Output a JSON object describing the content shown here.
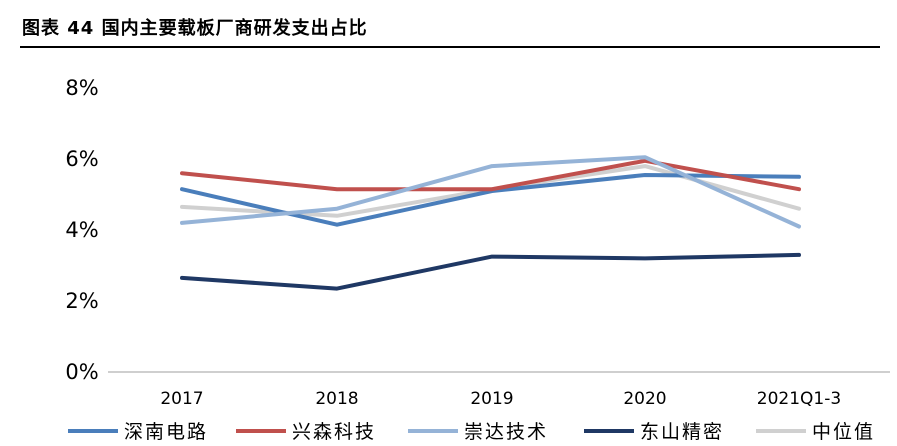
{
  "figure": {
    "title": "图表 44 国内主要载板厂商研发支出占比"
  },
  "chart_data": {
    "type": "line",
    "title": "",
    "xlabel": "",
    "ylabel": "",
    "categories": [
      "2017",
      "2018",
      "2019",
      "2020",
      "2021Q1-3"
    ],
    "ylim": [
      0,
      8
    ],
    "yticks": [
      "0%",
      "2%",
      "4%",
      "6%",
      "8%"
    ],
    "grid": false,
    "legend_position": "bottom",
    "series": [
      {
        "name": "深南电路",
        "color": "#4A7EBB",
        "values": [
          5.15,
          4.15,
          5.1,
          5.55,
          5.5
        ]
      },
      {
        "name": "兴森科技",
        "color": "#C0504D",
        "values": [
          5.6,
          5.15,
          5.15,
          5.95,
          5.15
        ]
      },
      {
        "name": "崇达技术",
        "color": "#95B3D7",
        "values": [
          4.2,
          4.6,
          5.8,
          6.05,
          4.1
        ]
      },
      {
        "name": "东山精密",
        "color": "#1F3864",
        "values": [
          2.65,
          2.35,
          3.25,
          3.2,
          3.3
        ]
      },
      {
        "name": "中位值",
        "color": "#D0D0D0",
        "values": [
          4.65,
          4.4,
          5.15,
          5.8,
          4.6
        ]
      }
    ]
  }
}
